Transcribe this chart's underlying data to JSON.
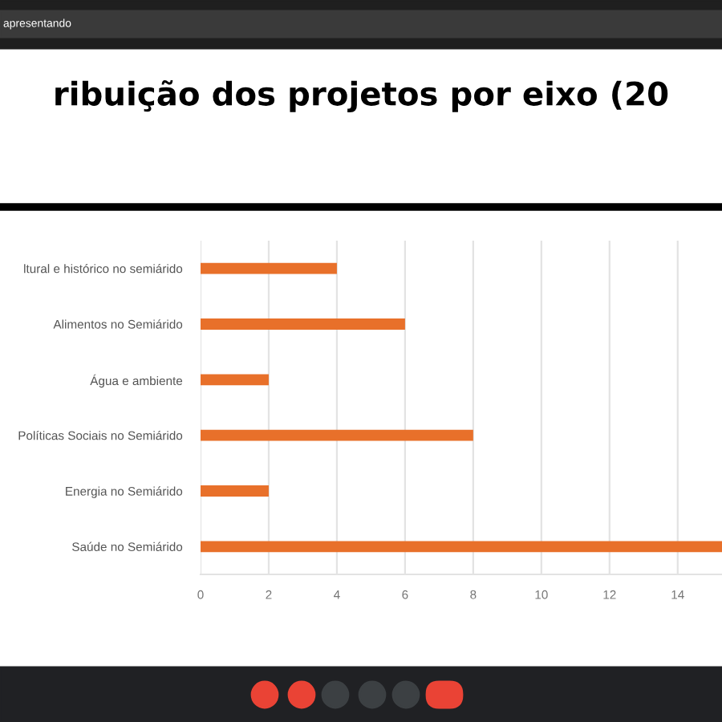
{
  "chart_data": {
    "type": "bar",
    "orientation": "horizontal",
    "title": "ribuição dos projetos por eixo (20",
    "categories": [
      "ltural e histórico no semiárido",
      "Alimentos no Semiárido",
      "Água e ambiente",
      "Políticas Sociais no Semiárido",
      "Energia no Semiárido",
      "Saúde no Semiárido"
    ],
    "values": [
      4,
      6,
      2,
      8,
      2,
      15.3
    ],
    "color": "#e8702a",
    "xlim": [
      0,
      15.3
    ],
    "xticks": [
      0,
      2,
      4,
      6,
      8,
      10,
      12,
      14
    ],
    "grid": "x",
    "annotations": [
      "apresentando"
    ]
  }
}
